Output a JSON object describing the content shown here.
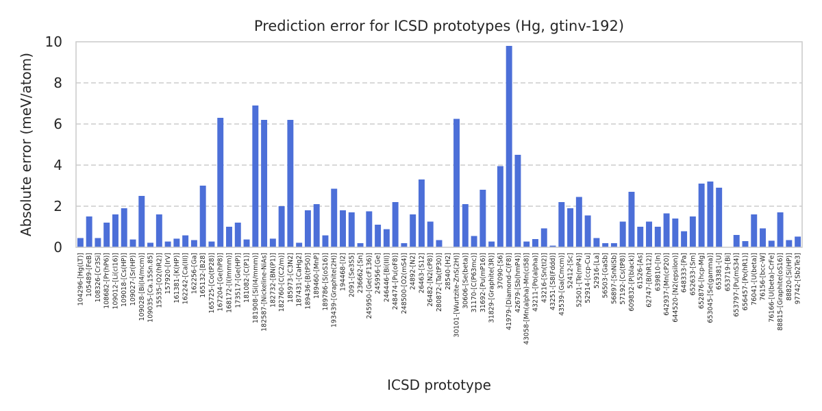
{
  "chart_data": {
    "type": "bar",
    "title": "Prediction error for ICSD prototypes (Hg, gtinv-192)",
    "xlabel": "ICSD prototype",
    "ylabel": "Absolute error (meV/atom)",
    "ylim": [
      0,
      10
    ],
    "yticks": [
      0,
      2,
      4,
      6,
      8,
      10
    ],
    "grid": "horizontal dashed",
    "colors": {
      "bar": "#4c6fd8",
      "grid": "#cccccc",
      "frame": "#cccccc",
      "text": "#262626"
    },
    "categories": [
      "104296-[Hg(LT)]",
      "105489-[FeB]",
      "108326-[Cr3Si]",
      "108682-[Pr(hP6)]",
      "109012-[Li(cI16)]",
      "109018-[Cs(HP)]",
      "109027-[Sr(HP)]",
      "109028-[Bi(I4/mcm)]",
      "109035-[Ca.15Sn.85]",
      "15535-[O2(hR2)]",
      "157920-[IrV]",
      "161381-[K(HP)]",
      "162242-[Ca(III)]",
      "162256-[Ga]",
      "165132-[B28]",
      "165725-[Co(tP28)]",
      "167204-[Ge(hP8)]",
      "168172-[I(Immm)]",
      "173517-[Ge(HP)]",
      "181082-[C(P1)]",
      "181908-[Si(I4/mmm)]",
      "182587-[Nickeline-NiAs]",
      "182732-[BN(P1)]",
      "182760-[C(C2/m)]",
      "185973-[C3N2]",
      "187431-[CaHg2]",
      "189436-[B(tP50)]",
      "189460-[MnP]",
      "189786-[S(oS16)]",
      "193439-[Graphite(2H)]",
      "194468-[I2]",
      "2091-[Se3S5]",
      "236662-[Sn]",
      "245950-[Ge(cF136)]",
      "245956-[Ge]",
      "246446-[Bi(III)]",
      "248474-[Pu(oF8)]",
      "248500-[O2(mS4)]",
      "24892-[N2]",
      "26463-[S12]",
      "26482-[N2(cP8)]",
      "280872-[Ta(tP30)]",
      "28540-[H2]",
      "30101-[Wurtzite-ZnS(2H)]",
      "30606-[Se(beta)]",
      "31170-[C(P63mc)]",
      "31692-[Pu(mP16)]",
      "31829-[Graphite(3R)]",
      "37090-[S6]",
      "41979-[Diamond-C(F8)]",
      "42679-[Sb(hmP4)]",
      "43058-[Mn(alpha)-Mn(cI58)]",
      "43211-[Po(alpha)]",
      "43216-[Sn(tI2)]",
      "43251-[S8(Fddd)]",
      "43539-[Ga(Cmcm)]",
      "52412-[Sc]",
      "52501-[Te(mP4)]",
      "52914-[ccp-Cu]",
      "52916-[La]",
      "56503-[GaSb]",
      "56897-[SnNiSb]",
      "57192-[Cs(tP8)]",
      "609832-[P(black)]",
      "61526-[As]",
      "62747-[B(hR12)]",
      "639810-[In]",
      "642937-[Mn(cP20)]",
      "644520-[N2(epsilon)]",
      "648333-[Pa]",
      "652633-[Sm]",
      "652876-[hcp-Mg]",
      "653045-[Se(gamma)]",
      "653381-[U]",
      "653719-[Bi]",
      "653797-[Pu(mS34)]",
      "656457-[Po(hR1)]",
      "76041-[U(beta)]",
      "76156-[bcc-W]",
      "76166-[U(beta)-CrFe]",
      "88815-[Graphite(oS16)]",
      "88820-[Si(HP)]",
      "97742-[Sb2Te3]"
    ],
    "values": [
      0.45,
      1.5,
      0.45,
      1.2,
      1.6,
      1.9,
      0.38,
      2.5,
      0.22,
      1.6,
      0.28,
      0.42,
      0.58,
      0.35,
      3.0,
      0.28,
      6.3,
      1.0,
      1.2,
      0.38,
      6.9,
      6.2,
      0.42,
      2.0,
      6.2,
      0.22,
      1.8,
      2.1,
      0.58,
      2.85,
      1.8,
      1.7,
      0.2,
      1.75,
      1.1,
      0.88,
      2.2,
      0.2,
      1.6,
      3.3,
      1.25,
      0.35,
      0.0,
      6.25,
      2.1,
      0.55,
      2.8,
      0.28,
      3.95,
      9.8,
      4.5,
      0.28,
      0.4,
      0.92,
      0.08,
      2.2,
      1.9,
      2.45,
      1.55,
      0.45,
      0.2,
      0.2,
      1.25,
      2.7,
      1.0,
      1.25,
      1.0,
      1.65,
      1.4,
      0.78,
      1.5,
      3.1,
      3.2,
      2.9,
      0.0,
      0.6,
      0.3,
      1.6,
      0.92,
      0.32,
      1.7,
      0.35,
      0.52
    ]
  }
}
